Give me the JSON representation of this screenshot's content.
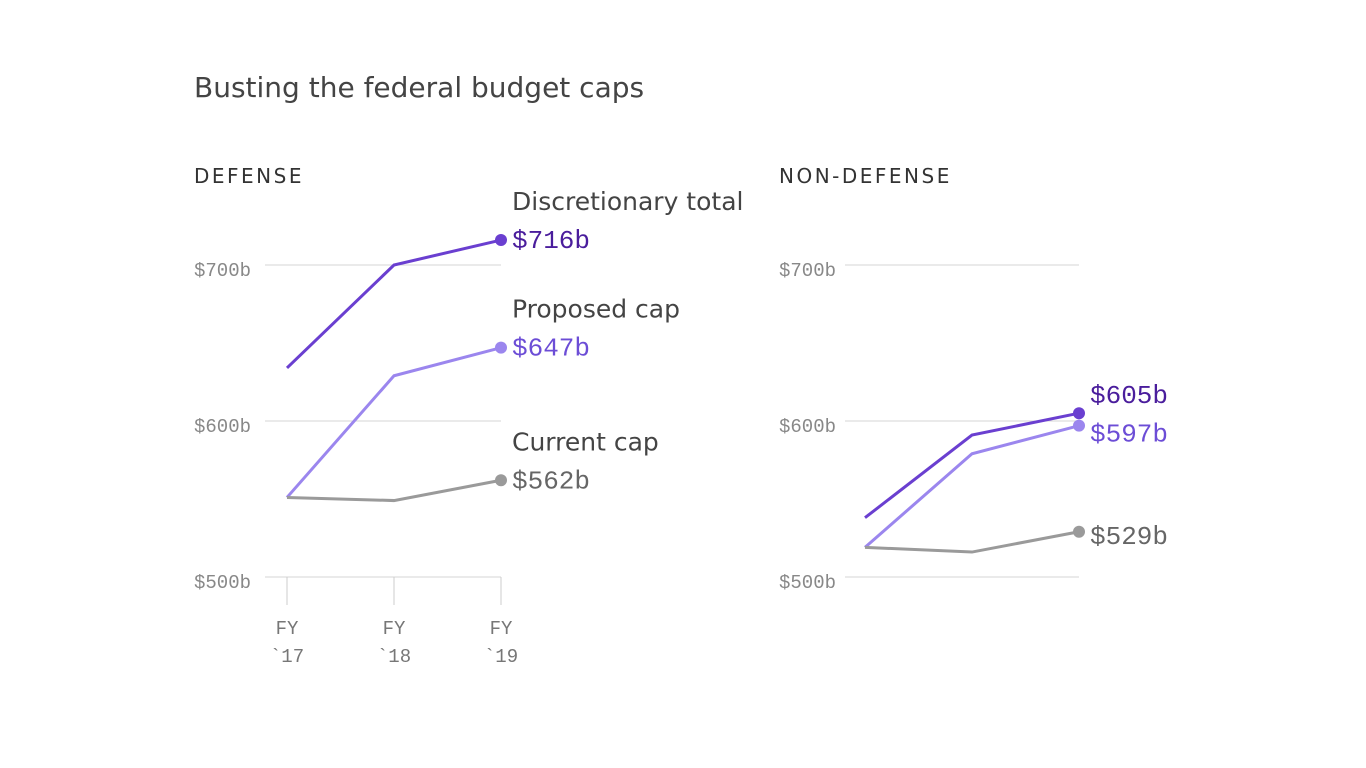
{
  "title": "Busting the federal budget caps",
  "chart_data": [
    {
      "type": "line",
      "title": "DEFENSE",
      "categories": [
        "FY\n`17",
        "FY\n`18",
        "FY\n`19"
      ],
      "ylim": [
        500,
        700
      ],
      "yticks": [
        {
          "value": 500,
          "label": "$500b"
        },
        {
          "value": 600,
          "label": "$600b"
        },
        {
          "value": 700,
          "label": "$700b"
        }
      ],
      "grid": true,
      "series": [
        {
          "name": "Discretionary total",
          "color": "#6a3fd0",
          "label_color": "#4a1d9c",
          "values": [
            634,
            700,
            716
          ],
          "value_labels": [
            null,
            null,
            "$716b"
          ]
        },
        {
          "name": "Proposed cap",
          "color": "#9b86ee",
          "label_color": "#6c4dd6",
          "values": [
            551,
            629,
            647
          ],
          "value_labels": [
            null,
            null,
            "$647b"
          ]
        },
        {
          "name": "Current cap",
          "color": "#9a9a9a",
          "label_color": "#666666",
          "values": [
            551,
            549,
            562
          ],
          "value_labels": [
            null,
            null,
            "$562b"
          ]
        }
      ]
    },
    {
      "type": "line",
      "title": "NON-DEFENSE",
      "categories": [
        null,
        null,
        null
      ],
      "ylim": [
        500,
        700
      ],
      "yticks": [
        {
          "value": 500,
          "label": "$500b"
        },
        {
          "value": 600,
          "label": "$600b"
        },
        {
          "value": 700,
          "label": "$700b"
        }
      ],
      "grid": true,
      "series": [
        {
          "color": "#6a3fd0",
          "label_color": "#4a1d9c",
          "values": [
            538,
            591,
            605
          ],
          "value_labels": [
            null,
            null,
            "$605b"
          ]
        },
        {
          "color": "#9b86ee",
          "label_color": "#6c4dd6",
          "values": [
            519,
            579,
            597
          ],
          "value_labels": [
            null,
            null,
            "$597b"
          ]
        },
        {
          "color": "#9a9a9a",
          "label_color": "#666666",
          "values": [
            519,
            516,
            529
          ],
          "value_labels": [
            null,
            null,
            "$529b"
          ]
        }
      ]
    }
  ]
}
